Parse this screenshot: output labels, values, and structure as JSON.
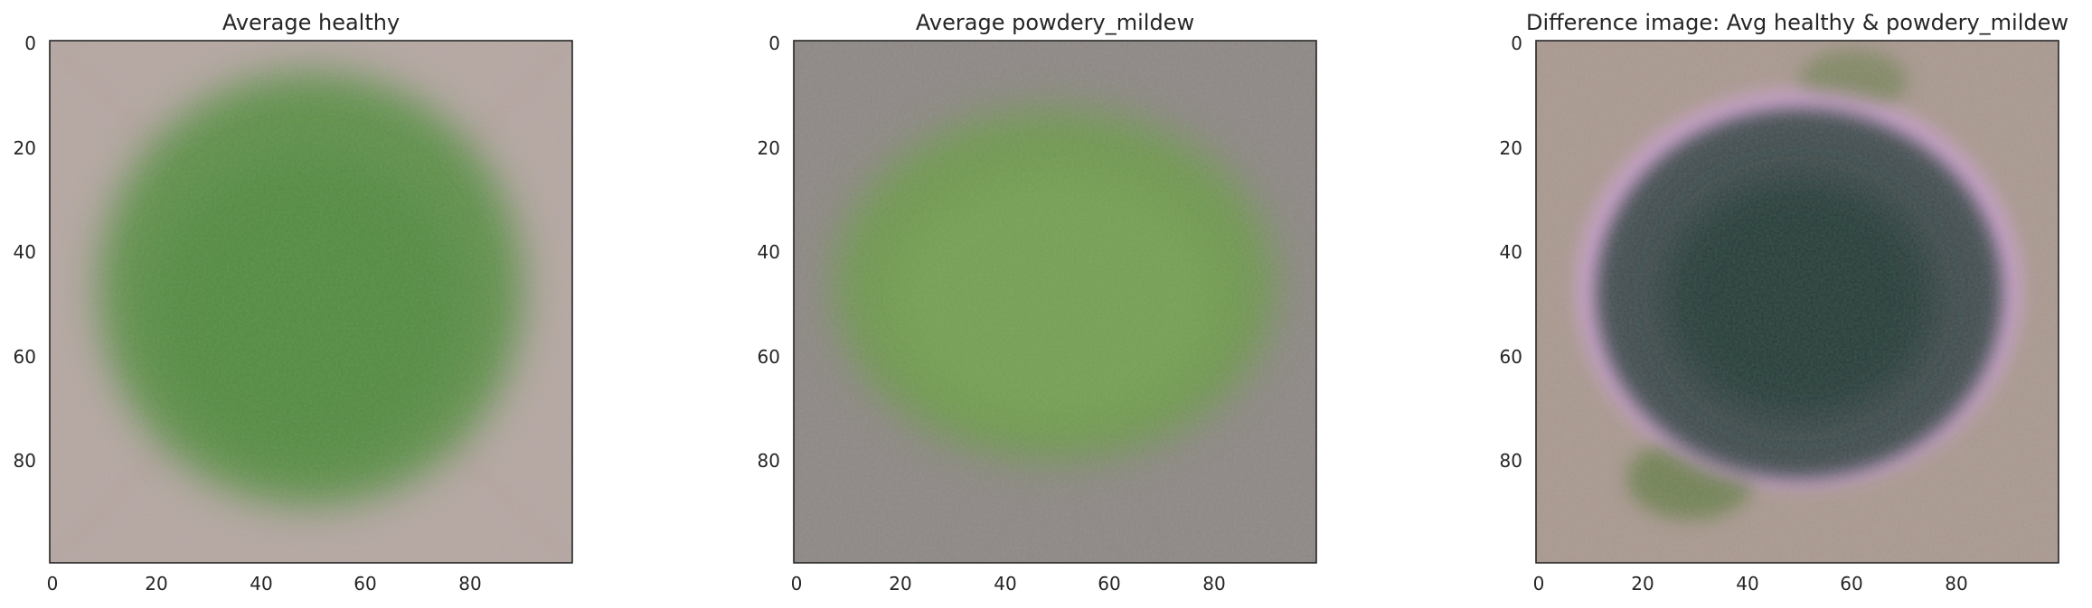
{
  "panels": [
    {
      "title": "Average healthy",
      "bg": "#b5a7a2",
      "blob": "#5a8f45",
      "blob_inner": "#4f8a3d",
      "edge": "#b39c9a"
    },
    {
      "title": "Average powdery_mildew",
      "bg": "#8d8784",
      "blob": "#6c9a48",
      "blob_inner": "#78a653",
      "edge": "#8d8885"
    },
    {
      "title": "Difference image: Avg healthy & powdery_mildew",
      "bg": "#a9988f",
      "blob": "#3a4a4a",
      "blob_inner": "#233b35",
      "edge": "#d9a5e3"
    }
  ],
  "axes": {
    "x_ticks": [
      "0",
      "20",
      "40",
      "60",
      "80"
    ],
    "y_ticks": [
      "0",
      "20",
      "40",
      "60",
      "80"
    ],
    "x_range": [
      0,
      100
    ],
    "y_range": [
      0,
      100
    ]
  }
}
